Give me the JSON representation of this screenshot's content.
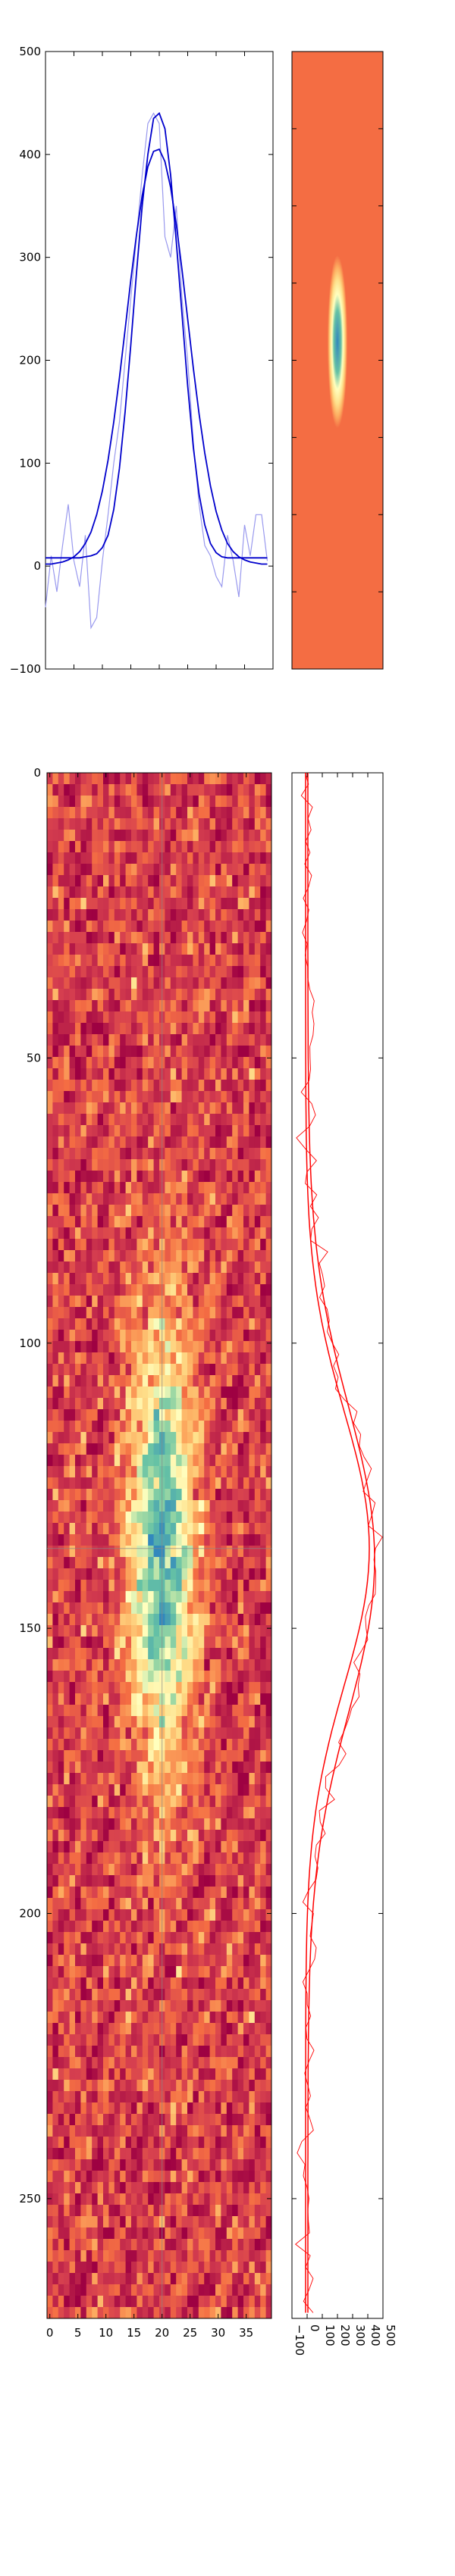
{
  "colors": {
    "background": "#ffffff",
    "model_line": "#0000cc",
    "data_line": "#9999ee",
    "profile_line": "#ff0000",
    "heatmap_low": "#9e0142",
    "heatmap_mid_low": "#f46d43",
    "heatmap_mid": "#ffffbf",
    "heatmap_high": "#66c2a5",
    "heatmap_peak": "#3288bd"
  },
  "chart_data": [
    {
      "id": "top-left-profile",
      "type": "line",
      "xlim": [
        0,
        40
      ],
      "ylim": [
        -100,
        500
      ],
      "yticks": [
        -100,
        0,
        100,
        200,
        300,
        400,
        500
      ],
      "grid": false,
      "x": [
        0,
        1,
        2,
        3,
        4,
        5,
        6,
        7,
        8,
        9,
        10,
        11,
        12,
        13,
        14,
        15,
        16,
        17,
        18,
        19,
        20,
        21,
        22,
        23,
        24,
        25,
        26,
        27,
        28,
        29,
        30,
        31,
        32,
        33,
        34,
        35,
        36,
        37,
        38,
        39
      ],
      "series": [
        {
          "role": "data",
          "values": [
            -40,
            10,
            -25,
            20,
            60,
            5,
            -20,
            30,
            -60,
            -50,
            5,
            50,
            100,
            140,
            200,
            260,
            320,
            380,
            430,
            440,
            430,
            320,
            300,
            350,
            260,
            200,
            120,
            60,
            20,
            10,
            -10,
            -20,
            30,
            5,
            -30,
            40,
            10,
            50,
            50,
            5
          ]
        },
        {
          "role": "fit-1",
          "values": [
            8,
            8,
            8,
            8,
            8,
            8,
            8,
            9,
            10,
            12,
            18,
            30,
            55,
            95,
            150,
            215,
            285,
            350,
            400,
            435,
            440,
            425,
            380,
            315,
            245,
            175,
            115,
            70,
            40,
            22,
            13,
            9,
            8,
            8,
            8,
            8,
            8,
            8,
            8,
            8
          ]
        },
        {
          "role": "fit-2",
          "values": [
            2,
            2,
            3,
            4,
            6,
            9,
            14,
            22,
            33,
            50,
            73,
            103,
            140,
            183,
            230,
            278,
            322,
            360,
            388,
            403,
            405,
            393,
            368,
            332,
            288,
            240,
            192,
            148,
            110,
            78,
            53,
            35,
            22,
            14,
            9,
            6,
            4,
            3,
            2,
            2
          ]
        }
      ]
    },
    {
      "id": "top-right-gaussian",
      "type": "heatmap",
      "shape": "2d-gaussian",
      "x_center": 0.5,
      "y_center": 0.47,
      "x_sigma": 0.11,
      "y_sigma": 0.14,
      "peak": 440,
      "range": [
        -100,
        500
      ]
    },
    {
      "id": "main-heatmap",
      "type": "heatmap",
      "xlim": [
        0,
        39
      ],
      "ylim": [
        0,
        271
      ],
      "xticks": [
        0,
        5,
        10,
        15,
        20,
        25,
        30,
        35
      ],
      "yticks": [
        0,
        50,
        100,
        150,
        200,
        250
      ],
      "crosshair": {
        "x": 20,
        "y": 136
      },
      "blob": {
        "x_center": 20,
        "y_center": 136,
        "x_sigma": 4.0,
        "y_sigma": 28,
        "peak": 420
      },
      "range": [
        -100,
        500
      ],
      "grid": false
    },
    {
      "id": "right-profile",
      "type": "line",
      "orientation": "vertical",
      "xlim": [
        -100,
        500
      ],
      "ylim": [
        0,
        271
      ],
      "xticks": [
        -100,
        0,
        100,
        200,
        300,
        400,
        500
      ],
      "grid": false,
      "fit": {
        "center": 138,
        "sigma": 27,
        "amplitude": 440,
        "offset": 5
      },
      "fit2": {
        "center": 136,
        "sigma": 24,
        "amplitude": 420,
        "offset": -10
      },
      "noise_amplitude": 50
    }
  ]
}
